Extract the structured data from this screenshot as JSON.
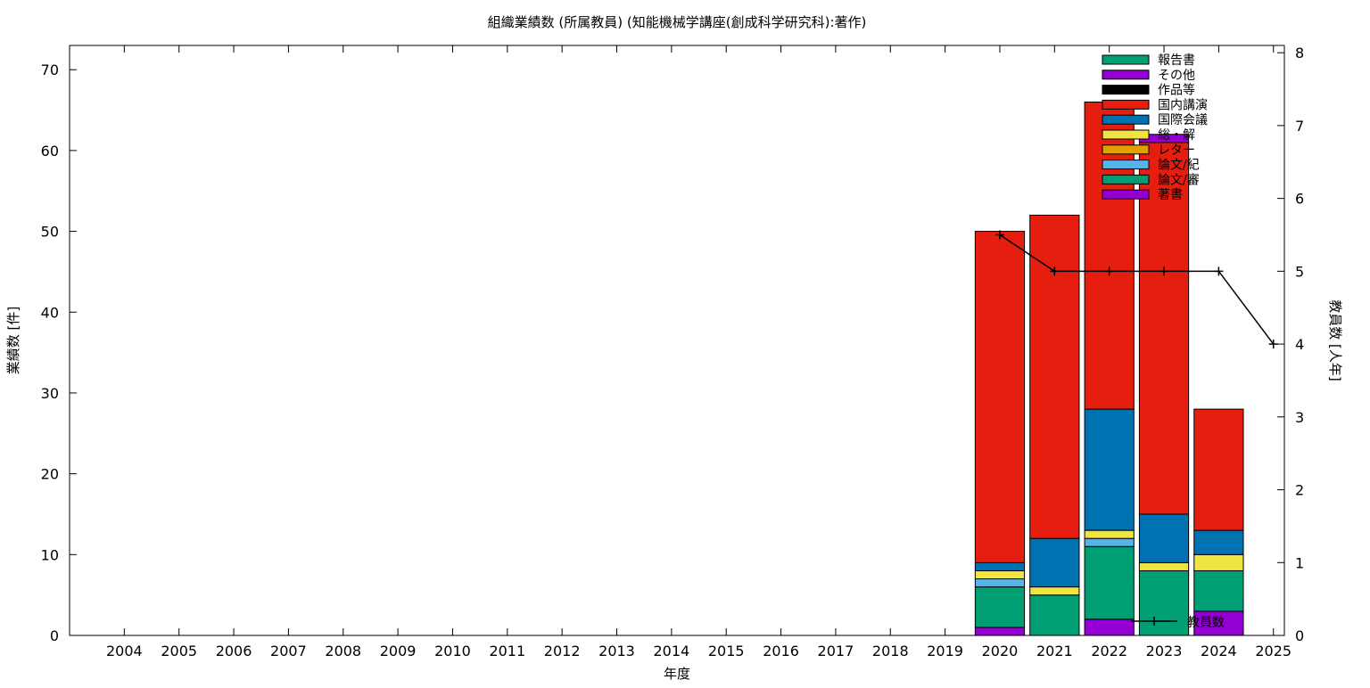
{
  "chart_data": {
    "type": "bar",
    "title": "組織業績数 (所属教員) (知能機械学講座(創成科学研究科):著作)",
    "xlabel": "年度",
    "ylabel": "業績数 [件]",
    "y2label": "教員数 [人年]",
    "categories": [
      "2004",
      "2005",
      "2006",
      "2007",
      "2008",
      "2009",
      "2010",
      "2011",
      "2012",
      "2013",
      "2014",
      "2015",
      "2016",
      "2017",
      "2018",
      "2019",
      "2020",
      "2021",
      "2022",
      "2023",
      "2024",
      "2025"
    ],
    "ylim": [
      0,
      73
    ],
    "y_ticks": [
      "0",
      "10",
      "20",
      "30",
      "40",
      "50",
      "60",
      "70"
    ],
    "y2lim": [
      0,
      8.1
    ],
    "y2_ticks": [
      "0",
      "1",
      "2",
      "3",
      "4",
      "5",
      "6",
      "7",
      "8"
    ],
    "stacked": true,
    "grid": false,
    "legend_position": "top-right",
    "series": [
      {
        "name": "著書",
        "color": "#9400d3",
        "values": [
          0,
          0,
          0,
          0,
          0,
          0,
          0,
          0,
          0,
          0,
          0,
          0,
          0,
          0,
          0,
          0,
          1,
          0,
          2,
          0,
          3,
          0
        ]
      },
      {
        "name": "論文/審",
        "color": "#009e73",
        "values": [
          0,
          0,
          0,
          0,
          0,
          0,
          0,
          0,
          0,
          0,
          0,
          0,
          0,
          0,
          0,
          0,
          5,
          5,
          9,
          8,
          5,
          0
        ]
      },
      {
        "name": "論文/紀",
        "color": "#56b4e9",
        "values": [
          0,
          0,
          0,
          0,
          0,
          0,
          0,
          0,
          0,
          0,
          0,
          0,
          0,
          0,
          0,
          0,
          1,
          0,
          1,
          0,
          0,
          0
        ]
      },
      {
        "name": "レター",
        "color": "#e69f00",
        "values": [
          0,
          0,
          0,
          0,
          0,
          0,
          0,
          0,
          0,
          0,
          0,
          0,
          0,
          0,
          0,
          0,
          0,
          0,
          0,
          0,
          0,
          0
        ]
      },
      {
        "name": "総・解",
        "color": "#f0e442",
        "values": [
          0,
          0,
          0,
          0,
          0,
          0,
          0,
          0,
          0,
          0,
          0,
          0,
          0,
          0,
          0,
          0,
          1,
          1,
          1,
          1,
          2,
          0
        ]
      },
      {
        "name": "国際会議",
        "color": "#0072b2",
        "values": [
          0,
          0,
          0,
          0,
          0,
          0,
          0,
          0,
          0,
          0,
          0,
          0,
          0,
          0,
          0,
          0,
          1,
          6,
          15,
          6,
          3,
          0
        ]
      },
      {
        "name": "国内講演",
        "color": "#e51e10",
        "values": [
          0,
          0,
          0,
          0,
          0,
          0,
          0,
          0,
          0,
          0,
          0,
          0,
          0,
          0,
          0,
          0,
          41,
          40,
          38,
          46,
          15,
          0
        ]
      },
      {
        "name": "作品等",
        "color": "#000000",
        "values": [
          0,
          0,
          0,
          0,
          0,
          0,
          0,
          0,
          0,
          0,
          0,
          0,
          0,
          0,
          0,
          0,
          0,
          0,
          0,
          0,
          0,
          0
        ]
      },
      {
        "name": "その他",
        "color": "#9400d3",
        "values": [
          0,
          0,
          0,
          0,
          0,
          0,
          0,
          0,
          0,
          0,
          0,
          0,
          0,
          0,
          0,
          0,
          0,
          0,
          0,
          1,
          0,
          0
        ]
      },
      {
        "name": "報告書",
        "color": "#009e73",
        "values": [
          0,
          0,
          0,
          0,
          0,
          0,
          0,
          0,
          0,
          0,
          0,
          0,
          0,
          0,
          0,
          0,
          0,
          0,
          0,
          0,
          0,
          0
        ]
      }
    ],
    "line_series": {
      "name": "教員数",
      "color": "#000000",
      "axis": "y2",
      "x": [
        "2020",
        "2021",
        "2022",
        "2023",
        "2024",
        "2025"
      ],
      "values": [
        5.5,
        5,
        5,
        5,
        5,
        4
      ]
    }
  }
}
